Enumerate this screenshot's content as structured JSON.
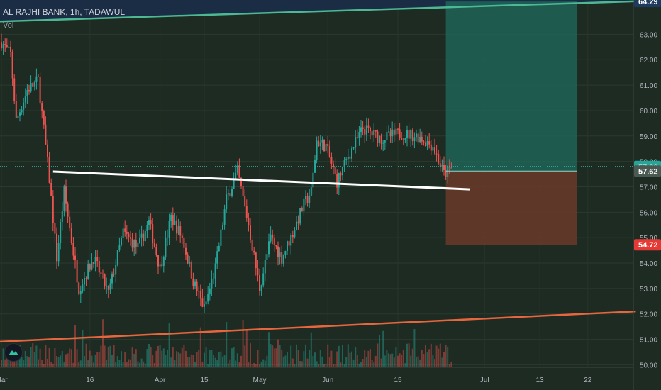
{
  "header": {
    "title": "AL RAJHI BANK, 1h, TADAWUL",
    "indicator": "Vol"
  },
  "colors": {
    "up": "#26a69a",
    "down": "#ef5350",
    "target_zone": "#1f6b5c",
    "stop_zone": "#6b3a2a",
    "upper_trendline": "#4db894",
    "lower_trendline": "#e8663d",
    "support_line": "#ffffff",
    "current_price": "#3fb5a8",
    "background": "#1e2b22"
  },
  "chart_data": {
    "type": "candlestick",
    "symbol": "AL RAJHI BANK",
    "interval": "1h",
    "exchange": "TADAWUL",
    "ylim": [
      49.9,
      64.35
    ],
    "x_ticks": [
      "Mar",
      "16",
      "Apr",
      "15",
      "May",
      "Jun",
      "15",
      "Jul",
      "13",
      "22"
    ],
    "y_ticks": [
      "50.00",
      "51.00",
      "52.00",
      "53.00",
      "54.00",
      "55.00",
      "56.00",
      "57.00",
      "58.00",
      "59.00",
      "60.00",
      "61.00",
      "62.00",
      "63.00"
    ],
    "price_labels": [
      {
        "value": "64.29",
        "kind": "target"
      },
      {
        "value": "57.80",
        "kind": "current"
      },
      {
        "value": "57.62",
        "kind": "entry"
      },
      {
        "value": "54.72",
        "kind": "stop"
      }
    ],
    "current_price": 57.8,
    "position": {
      "type": "long",
      "entry": 57.62,
      "target": 64.29,
      "stop": 54.72
    },
    "anchors": [
      {
        "t": 0,
        "p": 62.7
      },
      {
        "t": 5,
        "p": 62.2
      },
      {
        "t": 8,
        "p": 59.6
      },
      {
        "t": 14,
        "p": 60.8
      },
      {
        "t": 20,
        "p": 61.2
      },
      {
        "t": 26,
        "p": 57.3
      },
      {
        "t": 30,
        "p": 54.2
      },
      {
        "t": 34,
        "p": 56.8
      },
      {
        "t": 42,
        "p": 53.0
      },
      {
        "t": 50,
        "p": 54.2
      },
      {
        "t": 58,
        "p": 52.8
      },
      {
        "t": 66,
        "p": 55.2
      },
      {
        "t": 74,
        "p": 54.6
      },
      {
        "t": 80,
        "p": 55.6
      },
      {
        "t": 86,
        "p": 53.8
      },
      {
        "t": 92,
        "p": 55.8
      },
      {
        "t": 98,
        "p": 55.0
      },
      {
        "t": 104,
        "p": 53.3
      },
      {
        "t": 110,
        "p": 52.2
      },
      {
        "t": 116,
        "p": 53.8
      },
      {
        "t": 122,
        "p": 56.5
      },
      {
        "t": 128,
        "p": 57.6
      },
      {
        "t": 134,
        "p": 55.5
      },
      {
        "t": 140,
        "p": 53.0
      },
      {
        "t": 146,
        "p": 55.0
      },
      {
        "t": 152,
        "p": 54.2
      },
      {
        "t": 158,
        "p": 55.2
      },
      {
        "t": 164,
        "p": 56.3
      },
      {
        "t": 168,
        "p": 56.8
      },
      {
        "t": 171,
        "p": 58.8
      },
      {
        "t": 176,
        "p": 58.6
      },
      {
        "t": 182,
        "p": 57.2
      },
      {
        "t": 188,
        "p": 58.2
      },
      {
        "t": 196,
        "p": 59.3
      },
      {
        "t": 206,
        "p": 58.9
      },
      {
        "t": 216,
        "p": 59.1
      },
      {
        "t": 226,
        "p": 59.0
      },
      {
        "t": 234,
        "p": 58.6
      },
      {
        "t": 240,
        "p": 57.5
      },
      {
        "t": 244,
        "p": 57.7
      }
    ],
    "drawings": {
      "upper_trendline": {
        "from": {
          "t": -3,
          "p": 63.5
        },
        "to": {
          "t": 344,
          "p": 64.3
        }
      },
      "lower_trendline": {
        "from": {
          "t": -3,
          "p": 50.9
        },
        "to": {
          "t": 344,
          "p": 52.1
        }
      },
      "support_line": {
        "from": {
          "t": 28,
          "p": 57.6
        },
        "to": {
          "t": 254,
          "p": 56.9
        }
      },
      "position_box": {
        "from_t": 241,
        "to_t": 312
      }
    }
  }
}
